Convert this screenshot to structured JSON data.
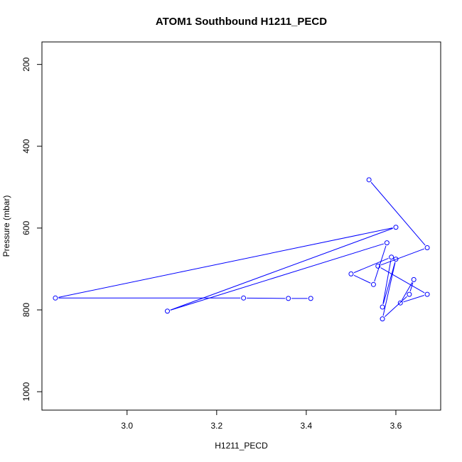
{
  "chart_data": {
    "type": "scatter",
    "title": "ATOM1 Southbound H1211_PECD",
    "xlabel": "H1211_PECD",
    "ylabel": "Pressure (mbar)",
    "xlim": [
      2.81,
      3.7
    ],
    "ylim": [
      1045,
      145
    ],
    "y_axis_inverted": true,
    "x_ticks": [
      "3.0",
      "3.2",
      "3.4",
      "3.6"
    ],
    "y_ticks": [
      "200",
      "400",
      "600",
      "800",
      "1000"
    ],
    "grid": false,
    "markers": "open circles connected by lines",
    "series": [
      {
        "color": "#0000ff",
        "points": [
          {
            "x": 3.54,
            "y": 482
          },
          {
            "x": 3.67,
            "y": 648
          },
          {
            "x": 3.56,
            "y": 693
          },
          {
            "x": 3.67,
            "y": 762
          },
          {
            "x": 3.61,
            "y": 783
          },
          {
            "x": 3.64,
            "y": 726
          },
          {
            "x": 3.63,
            "y": 762
          },
          {
            "x": 3.57,
            "y": 822
          },
          {
            "x": 3.6,
            "y": 676
          },
          {
            "x": 3.57,
            "y": 793
          },
          {
            "x": 3.59,
            "y": 671
          },
          {
            "x": 3.5,
            "y": 712
          },
          {
            "x": 3.55,
            "y": 738
          },
          {
            "x": 3.58,
            "y": 636
          },
          {
            "x": 3.09,
            "y": 803
          },
          {
            "x": 3.6,
            "y": 598
          },
          {
            "x": 2.84,
            "y": 771
          },
          {
            "x": 3.26,
            "y": 771
          },
          {
            "x": 3.36,
            "y": 772
          },
          {
            "x": 3.41,
            "y": 772
          }
        ]
      }
    ]
  }
}
